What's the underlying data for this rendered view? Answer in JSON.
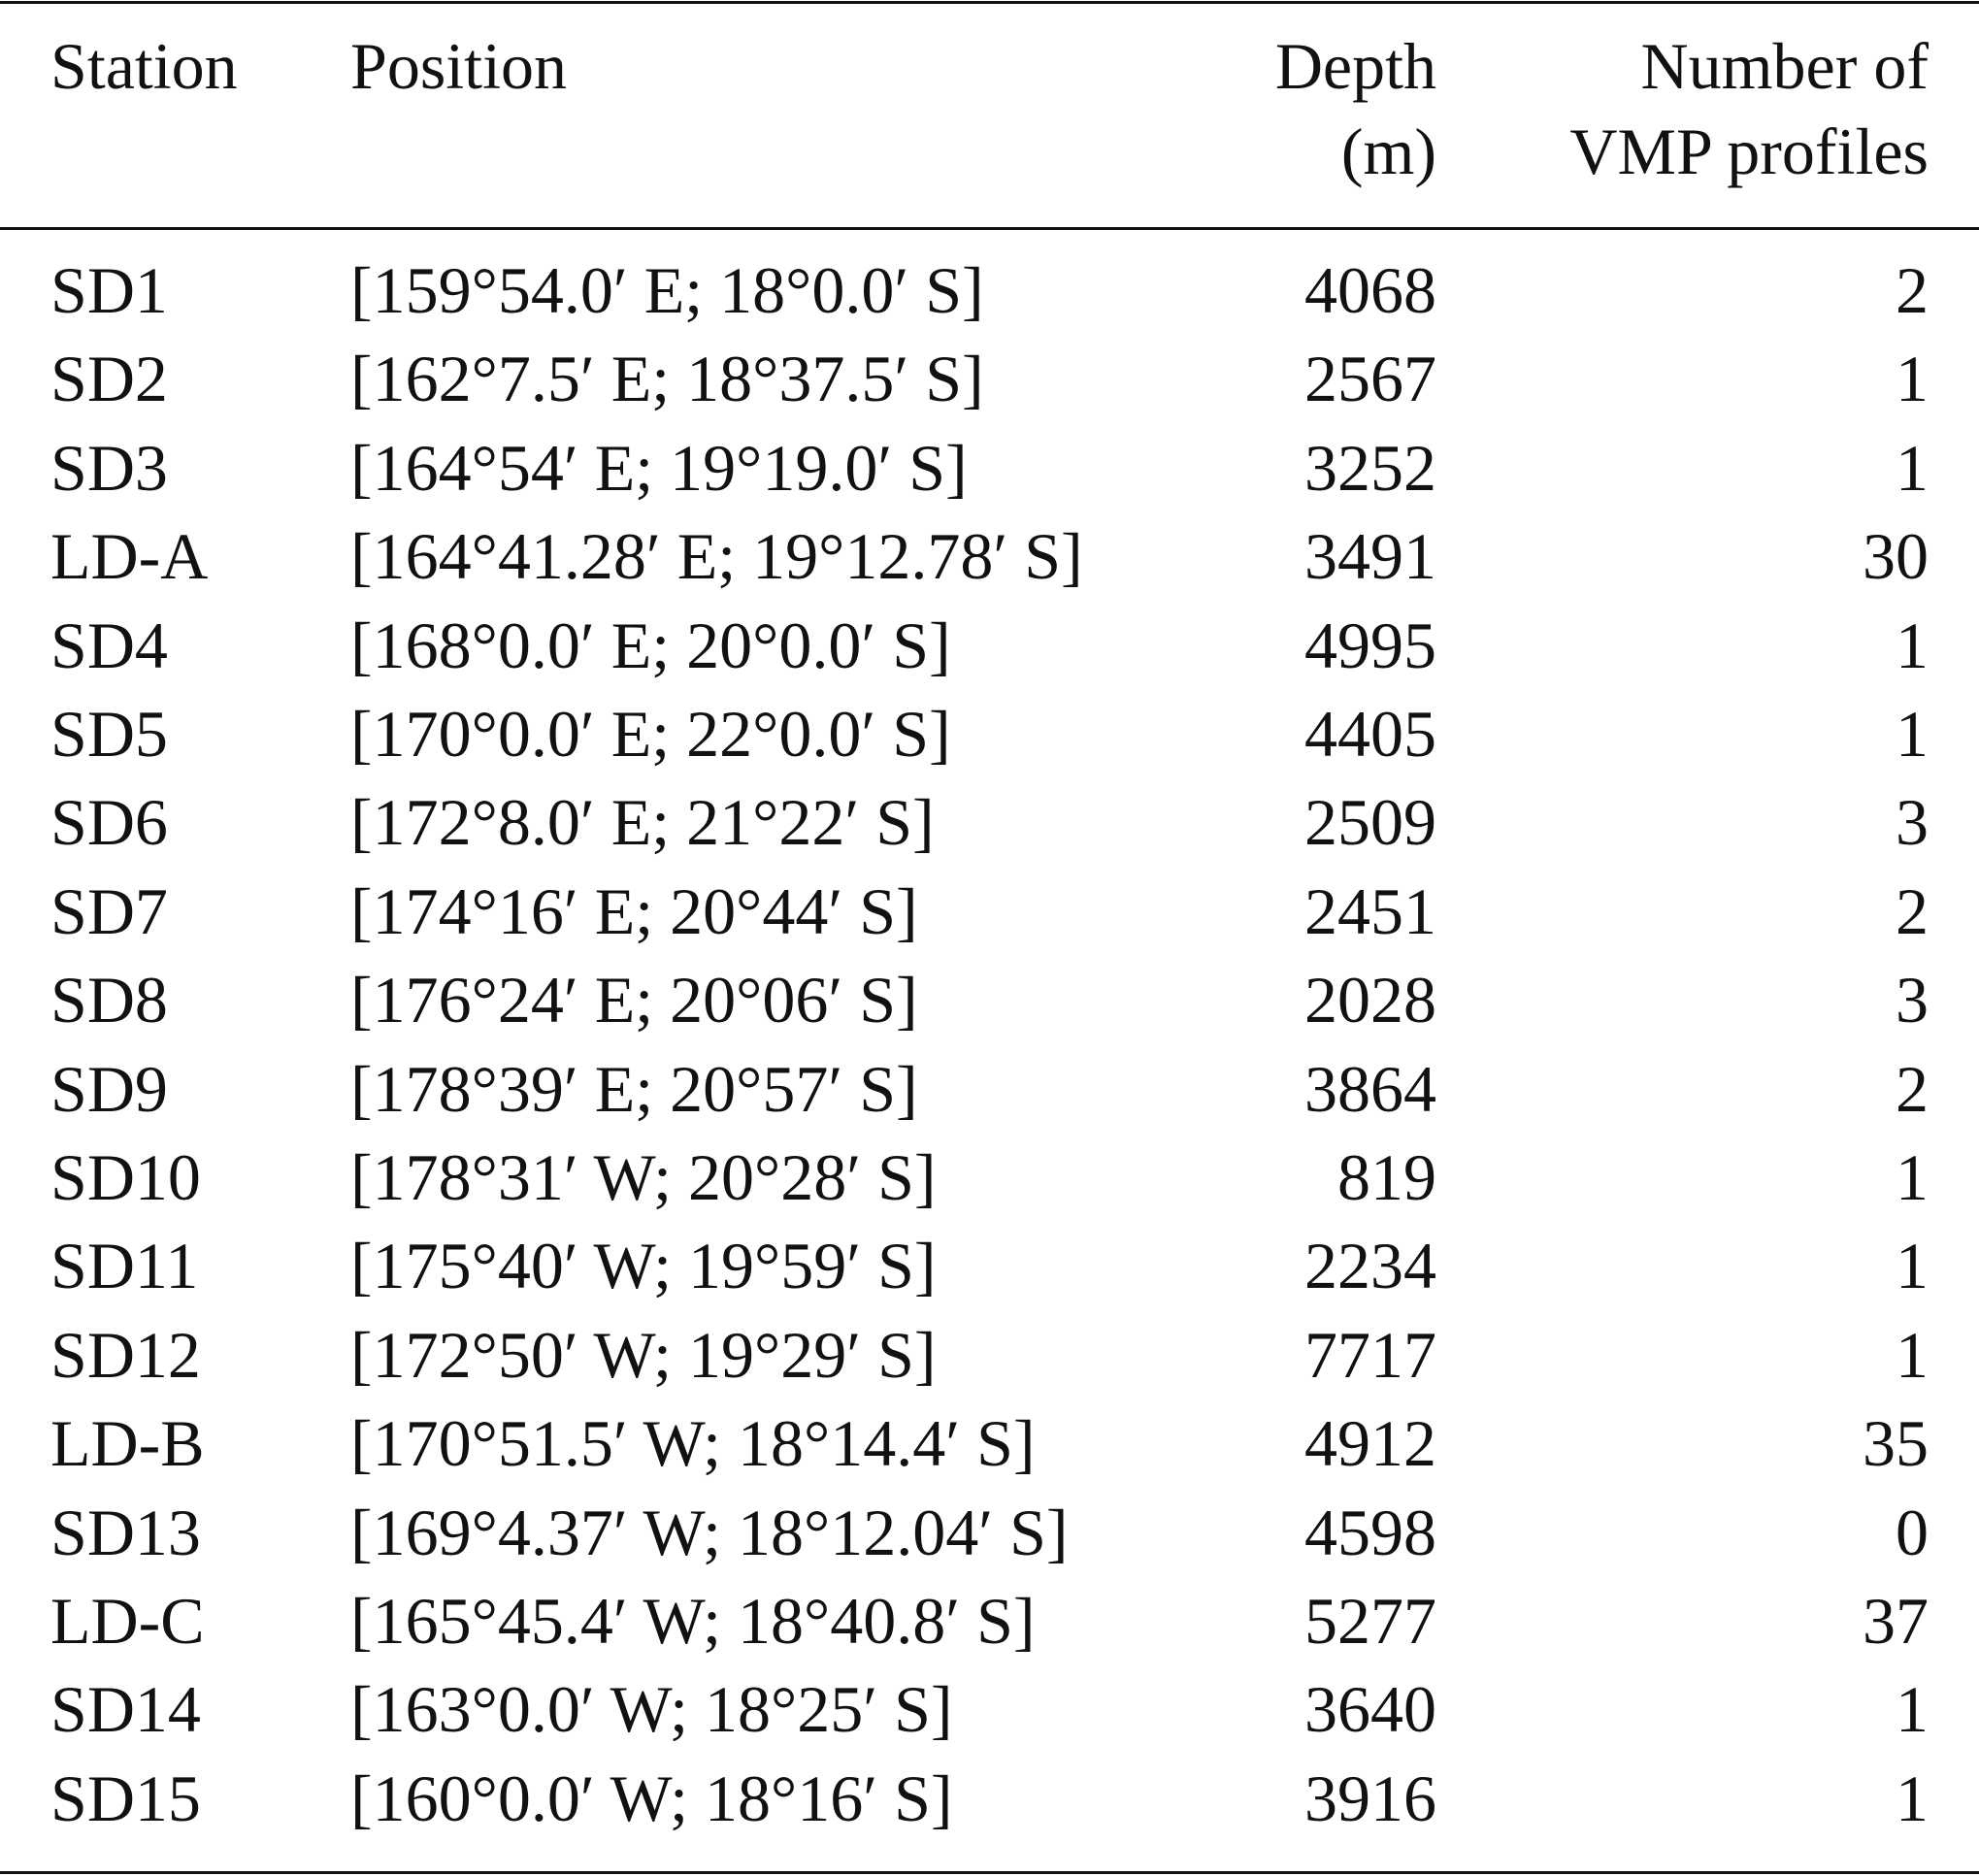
{
  "table": {
    "header": [
      [
        "Station"
      ],
      [
        "Position"
      ],
      [
        "Depth",
        "(m)"
      ],
      [
        "Number of",
        "VMP profiles"
      ]
    ],
    "rows": [
      [
        "SD1",
        "[159°54.0′ E; 18°0.0′ S]",
        4068,
        2
      ],
      [
        "SD2",
        "[162°7.5′ E; 18°37.5′ S]",
        2567,
        1
      ],
      [
        "SD3",
        "[164°54′ E; 19°19.0′ S]",
        3252,
        1
      ],
      [
        "LD-A",
        "[164°41.28′ E; 19°12.78′ S]",
        3491,
        30
      ],
      [
        "SD4",
        "[168°0.0′ E; 20°0.0′ S]",
        4995,
        1
      ],
      [
        "SD5",
        "[170°0.0′ E; 22°0.0′ S]",
        4405,
        1
      ],
      [
        "SD6",
        "[172°8.0′ E; 21°22′ S]",
        2509,
        3
      ],
      [
        "SD7",
        "[174°16′ E; 20°44′ S]",
        2451,
        2
      ],
      [
        "SD8",
        "[176°24′ E; 20°06′ S]",
        2028,
        3
      ],
      [
        "SD9",
        "[178°39′ E; 20°57′ S]",
        3864,
        2
      ],
      [
        "SD10",
        "[178°31′ W; 20°28′ S]",
        819,
        1
      ],
      [
        "SD11",
        "[175°40′ W; 19°59′ S]",
        2234,
        1
      ],
      [
        "SD12",
        "[172°50′ W; 19°29′ S]",
        7717,
        1
      ],
      [
        "LD-B",
        "[170°51.5′ W; 18°14.4′ S]",
        4912,
        35
      ],
      [
        "SD13",
        "[169°4.37′ W; 18°12.04′ S]",
        4598,
        0
      ],
      [
        "LD-C",
        "[165°45.4′ W; 18°40.8′ S]",
        5277,
        37
      ],
      [
        "SD14",
        "[163°0.0′ W; 18°25′ S]",
        3640,
        1
      ],
      [
        "SD15",
        "[160°0.0′ W; 18°16′ S]",
        3916,
        1
      ]
    ]
  }
}
